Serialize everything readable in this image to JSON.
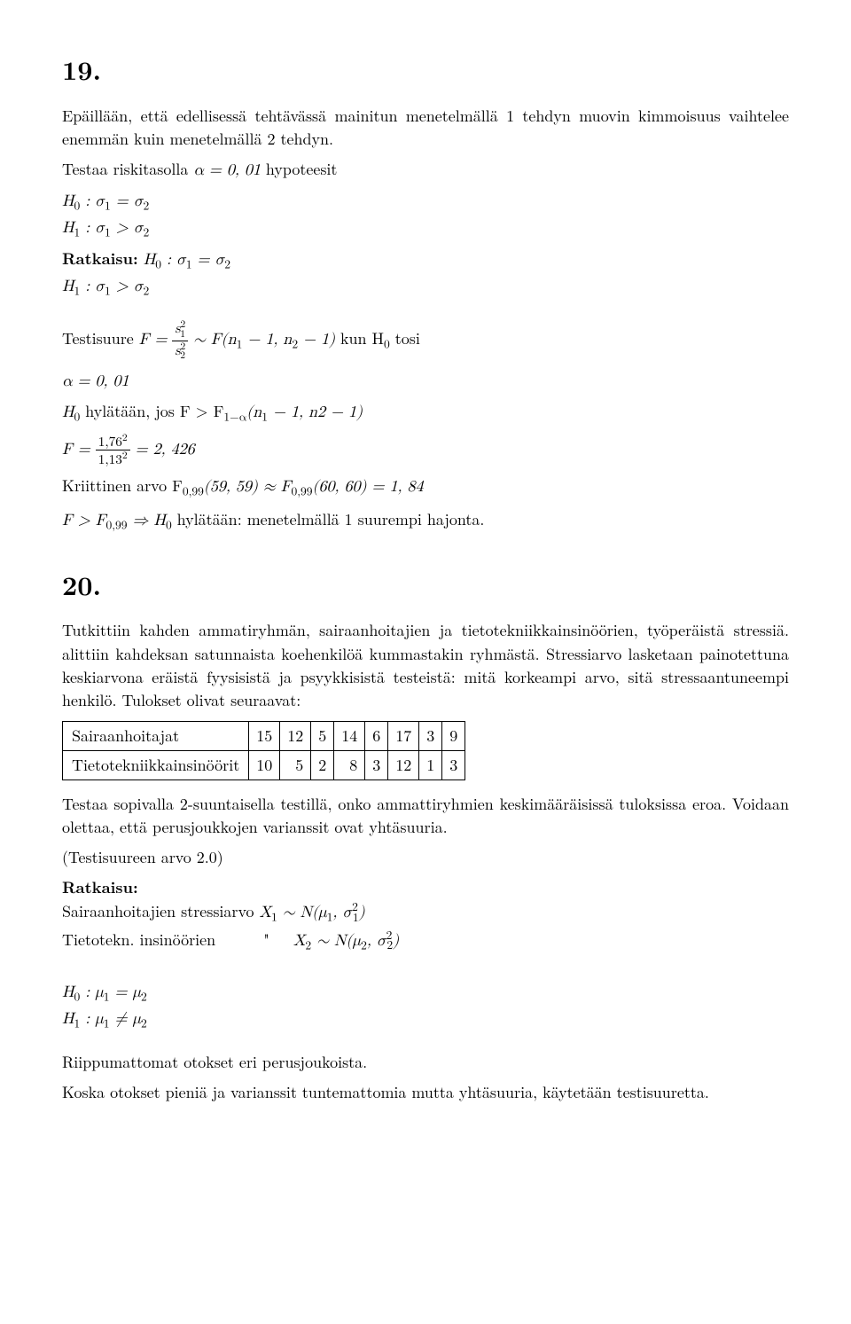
{
  "ex19": {
    "number": "19.",
    "intro": "Epäillään, että edellisessä tehtävässä mainitun menetelmällä 1 tehdyn muovin kimmoisuus vaihtelee enemmän kuin menetelmällä 2 tehdyn.",
    "testaa_prefix": "Testaa riskitasolla ",
    "alpha_eq": "α = 0, 01",
    "hypot_suffix": " hypoteesit",
    "H0": "H",
    "H0sub": "0",
    "H0rest": " : σ",
    "sigma1": "1",
    "eq": " = σ",
    "sigma2": "2",
    "H1": "H",
    "H1sub": "1",
    "H1rest": " : σ",
    "gt": " > σ",
    "ratkaisu_label": "Ratkaisu:",
    "ratkaisu_after": " H",
    "testisuure_label": "Testisuure ",
    "F_eq": "F = ",
    "frac_s_num": "s",
    "frac_s_den": "s",
    "tilde": " ∼ F(n",
    "n1": "1",
    "minus1": " − 1, n",
    "n2": "2",
    "minus1_paren": " − 1)",
    "kun": " kun H",
    "tosi": " tosi",
    "alpha_line": "α = 0, 01",
    "hyl_prefix": "H",
    "hyl_mid": " hylätään, jos F > F",
    "hyl_sub": "1−α",
    "hyl_paren": "(n",
    "hyl_n2": " − 1, n2 − 1)",
    "F_calc_eq": "F = ",
    "F_calc_num": "1,76",
    "F_calc_den": "1,13",
    "F_calc_result": " = 2, 426",
    "kriit_prefix": "Kriittinen arvo F",
    "kriit_sub1": "0,99",
    "kriit_args1": "(59, 59) ≈ F",
    "kriit_args2": "(60, 60) = 1, 84",
    "concl_prefix": "F > F",
    "concl_imp": " ⇒ H",
    "concl_rest": " hylätään: menetelmällä 1 suurempi hajonta."
  },
  "ex20": {
    "number": "20.",
    "intro1": "Tutkittiin kahden ammatiryhmän, sairaanhoitajien ja tietotekniikkainsinöörien, työperäistä stressiä. alittiin kahdeksan satunnaista koehenkilöä kummastakin ryhmästä. Stressiarvo lasketaan painotettuna keskiarvona eräistä fyysisistä ja psyykkisistä testeistä: mitä korkeampi arvo, sitä stressaantuneempi henkilö. Tulokset olivat seuraavat:",
    "table": {
      "row1_label": "Sairaanhoitajat",
      "row1": [
        "15",
        "12",
        "5",
        "14",
        "6",
        "17",
        "3",
        "9"
      ],
      "row2_label": "Tietotekniikkainsinöörit",
      "row2": [
        "10",
        "5",
        "2",
        "8",
        "3",
        "12",
        "1",
        "3"
      ]
    },
    "after_table": "Testaa sopivalla 2-suuntaisella testillä, onko ammattiryhmien keskimääräisissä tuloksissa eroa. Voidaan olettaa, että perusjoukkojen varianssit ovat yhtäsuuria.",
    "testisuure_arvo": "(Testisuureen arvo 2.0)",
    "ratkaisu_label": "Ratkaisu:",
    "line_sair_prefix": "Sairaanhoitajien stressiarvo ",
    "X1": "X",
    "tilde_N": " ∼ N(μ",
    "comma_sigma": ", σ",
    "close_paren": ")",
    "line_tiet_prefix": "Tietotekn. insinöörien",
    "quote": "\"",
    "X2": "X",
    "H0_mu": "H",
    "H0_mu_rest": " : μ",
    "eq_mu": " = μ",
    "H1_mu": "H",
    "neq_mu": " ≠ μ",
    "riippu": "Riippumattomat otokset eri perusjoukoista.",
    "koska": "Koska otokset pieniä ja varianssit tuntemattomia mutta yhtäsuuria, käytetään testisuuretta."
  }
}
